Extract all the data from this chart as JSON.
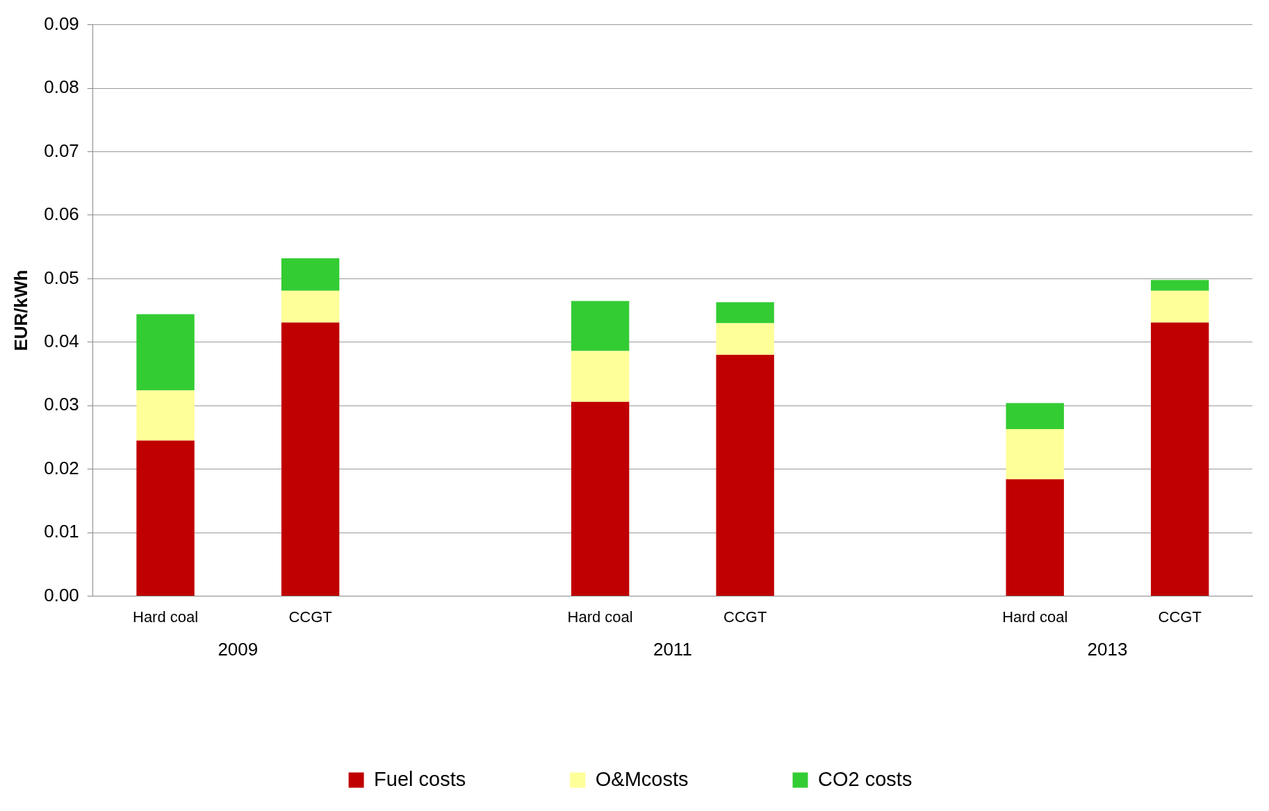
{
  "chart_data": {
    "type": "bar",
    "ylabel": "EUR/kWh",
    "stacked": true,
    "categories": [
      "Hard coal",
      "CCGT",
      null,
      "Hard coal",
      "CCGT",
      null,
      "Hard coal",
      "CCGT"
    ],
    "series": [
      {
        "name": "Fuel costs",
        "color": "#c00000",
        "values": [
          0.0245,
          0.0431,
          null,
          0.0306,
          0.038,
          null,
          0.0184,
          0.0431
        ]
      },
      {
        "name": "O&Mcosts",
        "color": "#ffff99",
        "values": [
          0.0079,
          0.005,
          null,
          0.008,
          0.005,
          null,
          0.0079,
          0.005
        ]
      },
      {
        "name": "CO2 costs",
        "color": "#33cc33",
        "values": [
          0.012,
          0.0051,
          null,
          0.0079,
          0.0033,
          null,
          0.0041,
          0.0017
        ]
      }
    ],
    "annotations": [
      "2009",
      "2011",
      "2013"
    ],
    "ylim": [
      0,
      0.09
    ],
    "yticks": [
      {
        "value": 0,
        "label": "0.00"
      },
      {
        "value": 0.01,
        "label": "0.01"
      },
      {
        "value": 0.02,
        "label": "0.02"
      },
      {
        "value": 0.03,
        "label": "0.03"
      },
      {
        "value": 0.04,
        "label": "0.04"
      },
      {
        "value": 0.05,
        "label": "0.05"
      },
      {
        "value": 0.06,
        "label": "0.06"
      },
      {
        "value": 0.07,
        "label": "0.07"
      },
      {
        "value": 0.08,
        "label": "0.08"
      },
      {
        "value": 0.09,
        "label": "0.09"
      }
    ],
    "grid": "y",
    "legend": "bottom"
  }
}
